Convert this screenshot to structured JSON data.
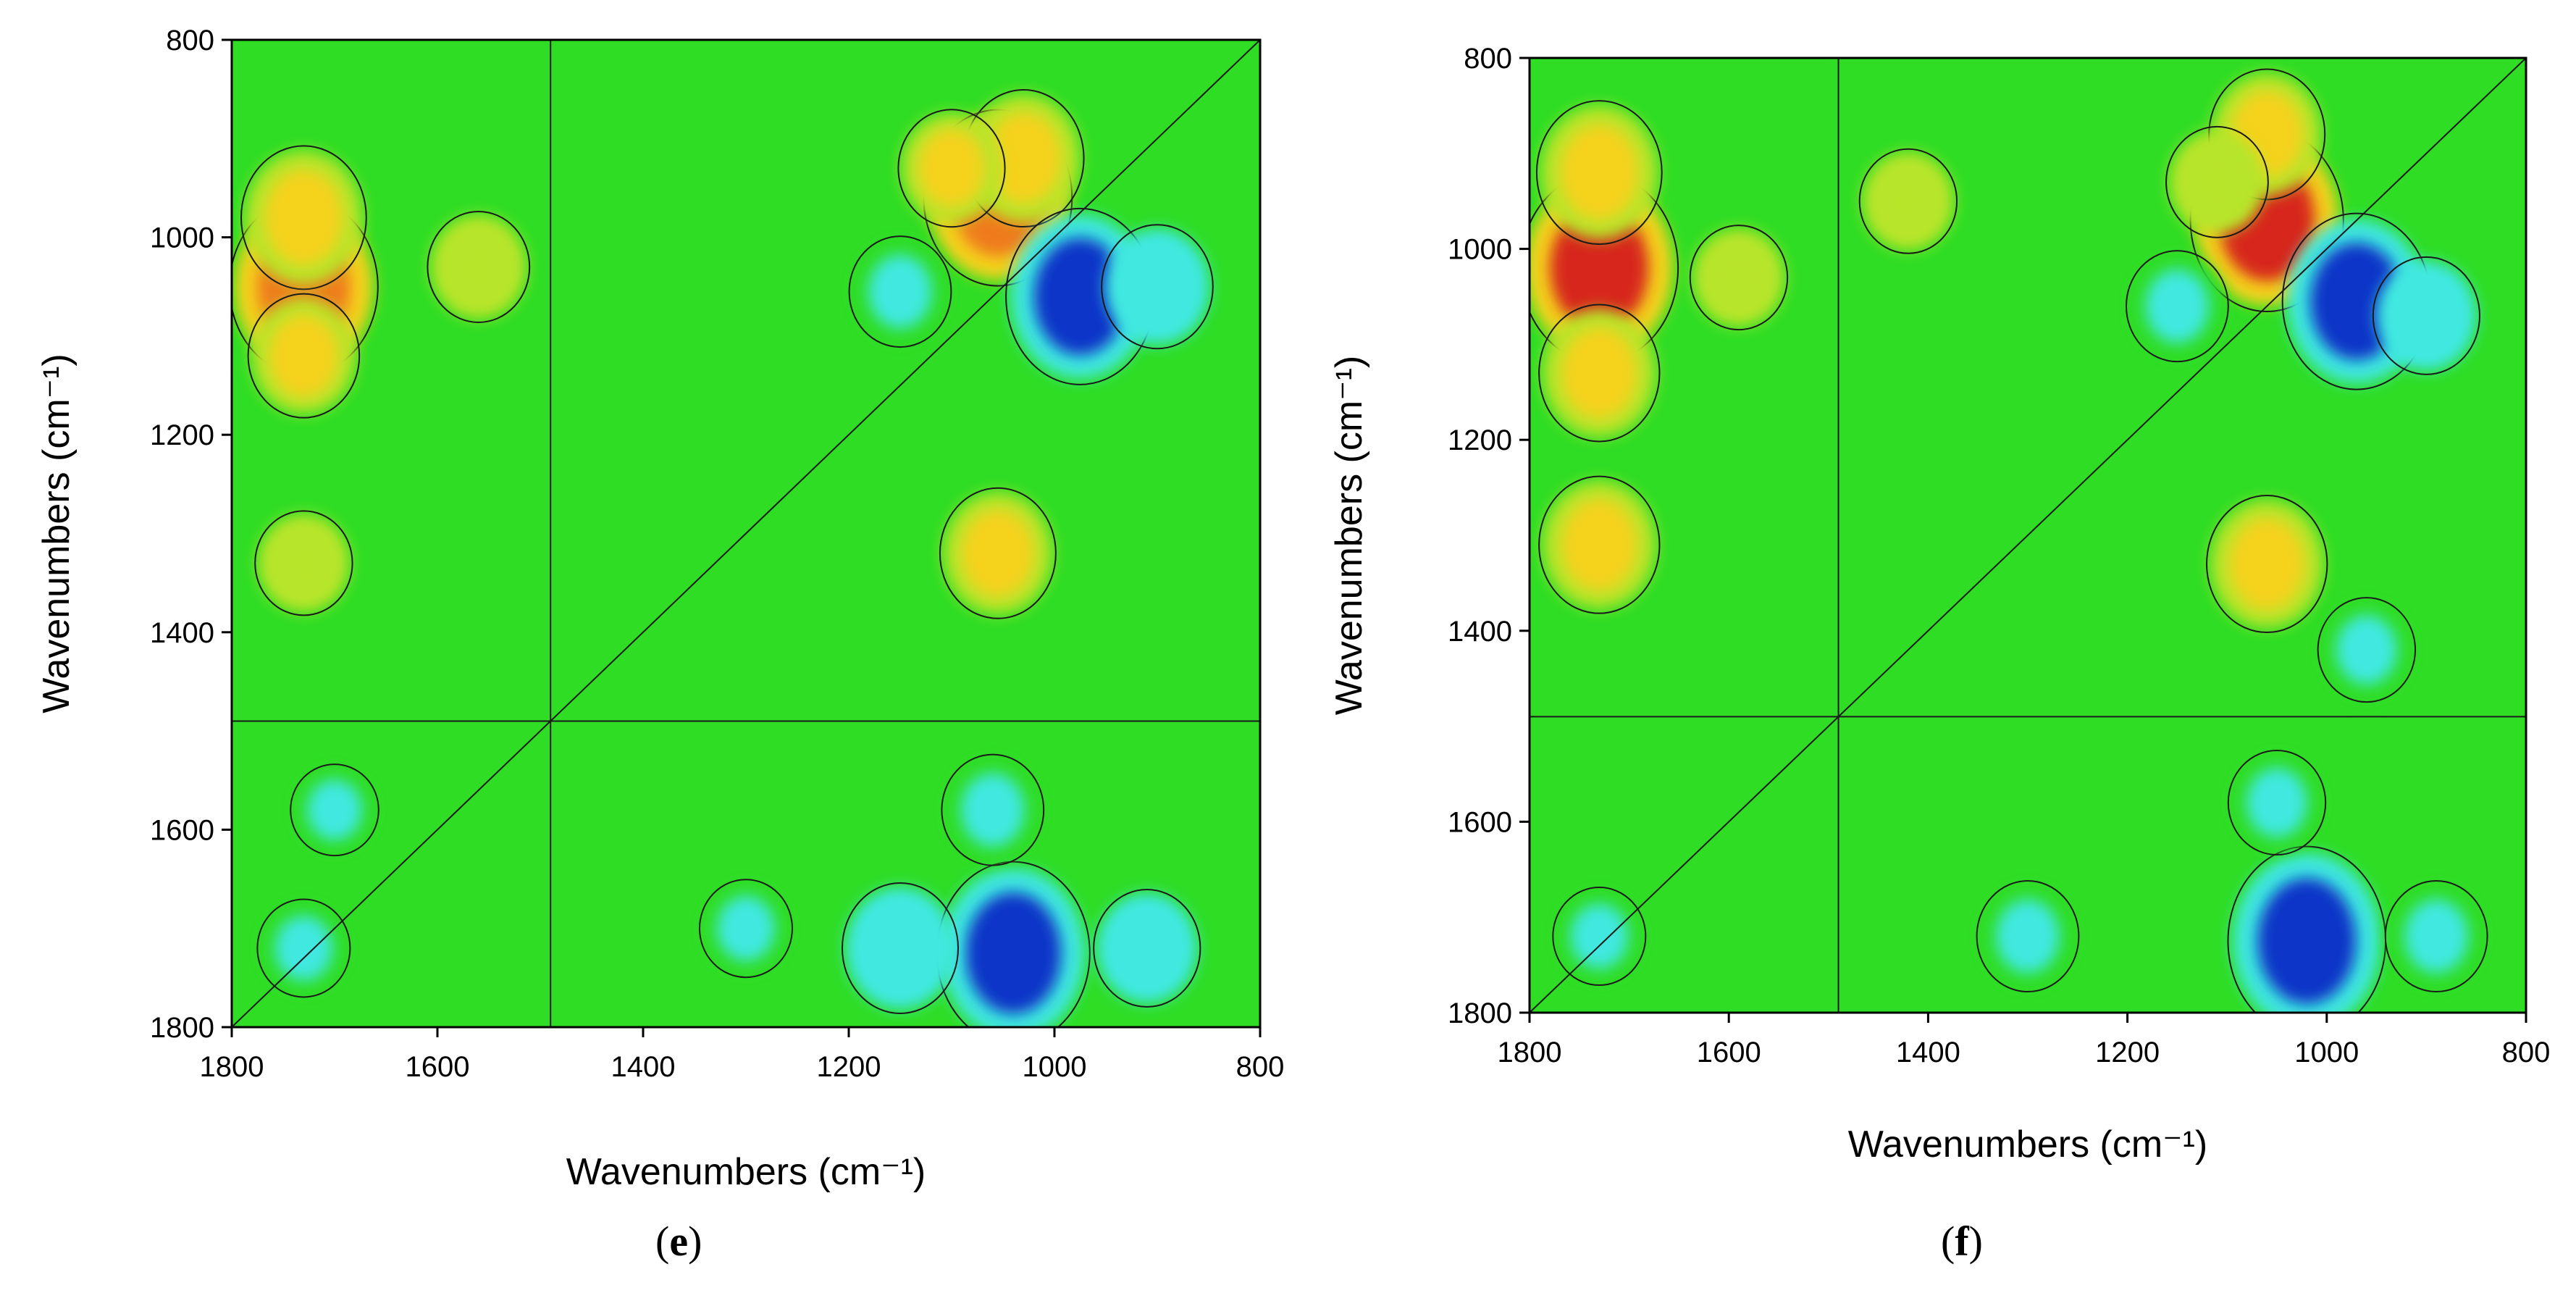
{
  "chart_data": [
    {
      "type": "heatmap",
      "panel_label": "e",
      "xlabel": "Wavenumbers (cm⁻¹)",
      "ylabel": "Wavenumbers (cm⁻¹)",
      "xlim": [
        1800,
        800
      ],
      "ylim": [
        800,
        1800
      ],
      "xticks": [
        1800,
        1600,
        1400,
        1200,
        1000,
        800
      ],
      "yticks": [
        800,
        1000,
        1200,
        1400,
        1600,
        1800
      ],
      "colormap": [
        "#0a35c8",
        "#1f8fe6",
        "#3fe8e0",
        "#2fdd25",
        "#b7e52c",
        "#f5d21a",
        "#ef7a1c",
        "#d7281b"
      ],
      "background_value": 0,
      "features": [
        {
          "x": 1730,
          "y": 1050,
          "value": 0.85
        },
        {
          "x": 1730,
          "y": 980,
          "value": 0.6
        },
        {
          "x": 1730,
          "y": 1120,
          "value": 0.45
        },
        {
          "x": 1560,
          "y": 1030,
          "value": 0.35
        },
        {
          "x": 1055,
          "y": 960,
          "value": 0.85
        },
        {
          "x": 1030,
          "y": 920,
          "value": 0.55
        },
        {
          "x": 1100,
          "y": 930,
          "value": 0.4
        },
        {
          "x": 1055,
          "y": 1320,
          "value": 0.5
        },
        {
          "x": 1730,
          "y": 1330,
          "value": 0.3
        },
        {
          "x": 975,
          "y": 1060,
          "value": -0.85
        },
        {
          "x": 1150,
          "y": 1055,
          "value": -0.35
        },
        {
          "x": 900,
          "y": 1050,
          "value": -0.45
        },
        {
          "x": 1040,
          "y": 1725,
          "value": -0.9
        },
        {
          "x": 1150,
          "y": 1720,
          "value": -0.5
        },
        {
          "x": 910,
          "y": 1720,
          "value": -0.4
        },
        {
          "x": 1060,
          "y": 1580,
          "value": -0.35
        },
        {
          "x": 1730,
          "y": 1720,
          "value": -0.25
        },
        {
          "x": 1700,
          "y": 1580,
          "value": -0.2
        },
        {
          "x": 1300,
          "y": 1700,
          "value": -0.25
        }
      ]
    },
    {
      "type": "heatmap",
      "panel_label": "f",
      "xlabel": "Wavenumbers (cm⁻¹)",
      "ylabel": "Wavenumbers (cm⁻¹)",
      "xlim": [
        1800,
        800
      ],
      "ylim": [
        800,
        1800
      ],
      "xticks": [
        1800,
        1600,
        1400,
        1200,
        1000,
        800
      ],
      "yticks": [
        800,
        1000,
        1200,
        1400,
        1600,
        1800
      ],
      "colormap": [
        "#0a35c8",
        "#1f8fe6",
        "#3fe8e0",
        "#2fdd25",
        "#b7e52c",
        "#f5d21a",
        "#ef7a1c",
        "#d7281b"
      ],
      "background_value": 0,
      "features": [
        {
          "x": 1730,
          "y": 1020,
          "value": 0.95
        },
        {
          "x": 1730,
          "y": 920,
          "value": 0.6
        },
        {
          "x": 1730,
          "y": 1130,
          "value": 0.55
        },
        {
          "x": 1730,
          "y": 1310,
          "value": 0.55
        },
        {
          "x": 1590,
          "y": 1030,
          "value": 0.3
        },
        {
          "x": 1060,
          "y": 970,
          "value": 0.9
        },
        {
          "x": 1060,
          "y": 880,
          "value": 0.5
        },
        {
          "x": 1110,
          "y": 930,
          "value": 0.35
        },
        {
          "x": 1060,
          "y": 1330,
          "value": 0.55
        },
        {
          "x": 1420,
          "y": 950,
          "value": 0.3
        },
        {
          "x": 970,
          "y": 1055,
          "value": -0.85
        },
        {
          "x": 1150,
          "y": 1060,
          "value": -0.35
        },
        {
          "x": 900,
          "y": 1070,
          "value": -0.4
        },
        {
          "x": 1020,
          "y": 1725,
          "value": -0.95
        },
        {
          "x": 1300,
          "y": 1720,
          "value": -0.35
        },
        {
          "x": 890,
          "y": 1720,
          "value": -0.35
        },
        {
          "x": 1050,
          "y": 1580,
          "value": -0.3
        },
        {
          "x": 960,
          "y": 1420,
          "value": -0.3
        },
        {
          "x": 1730,
          "y": 1720,
          "value": -0.25
        }
      ]
    }
  ]
}
